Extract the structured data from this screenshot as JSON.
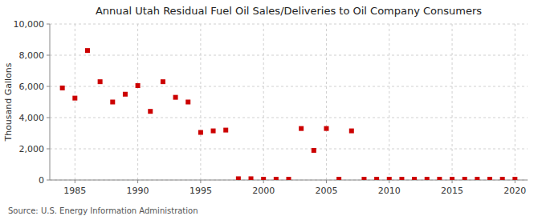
{
  "chart_data": {
    "type": "scatter",
    "title": "Annual Utah Residual Fuel Oil Sales/Deliveries to Oil Company Consumers",
    "ylabel": "Thousand Gallons",
    "source": "Source: U.S. Energy Information Administration",
    "color": "#cc0000",
    "marker": "square",
    "grid": true,
    "xlim": [
      1983,
      2021
    ],
    "ylim": [
      0,
      10000
    ],
    "xticks": [
      1985,
      1990,
      1995,
      2000,
      2005,
      2010,
      2015,
      2020
    ],
    "yticks": [
      0,
      {
        "value": 2000,
        "label": "2,000"
      },
      {
        "value": 4000,
        "label": "4,000"
      },
      {
        "value": 6000,
        "label": "6,000"
      },
      {
        "value": 8000,
        "label": "8,000"
      },
      {
        "value": 10000,
        "label": "10,000"
      }
    ],
    "x": [
      1984,
      1985,
      1986,
      1987,
      1988,
      1989,
      1990,
      1991,
      1992,
      1993,
      1994,
      1995,
      1996,
      1997,
      1998,
      1999,
      2000,
      2001,
      2002,
      2003,
      2004,
      2005,
      2006,
      2007,
      2008,
      2009,
      2010,
      2011,
      2012,
      2013,
      2014,
      2015,
      2016,
      2017,
      2018,
      2019,
      2020
    ],
    "values": [
      5900,
      5250,
      8300,
      6300,
      5000,
      5500,
      6050,
      4400,
      6300,
      5300,
      5000,
      3050,
      3150,
      3200,
      80,
      80,
      50,
      50,
      50,
      3300,
      1900,
      3300,
      50,
      3150,
      50,
      50,
      50,
      50,
      50,
      50,
      50,
      50,
      50,
      50,
      50,
      50,
      50
    ]
  }
}
